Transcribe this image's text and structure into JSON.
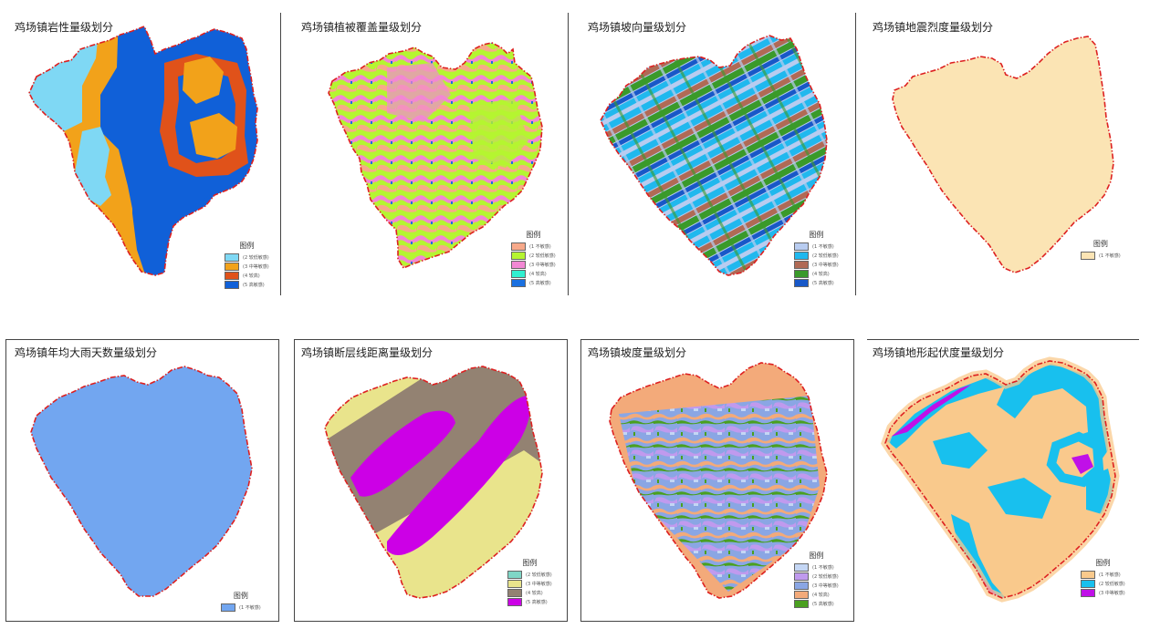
{
  "panels": [
    {
      "title": "鸡场镇岩性量级划分",
      "legend_title": "图例",
      "classes": [
        {
          "label": "(2 较低敏感)",
          "color": "#7fd8f4"
        },
        {
          "label": "(3 中等敏感)",
          "color": "#f2a21a"
        },
        {
          "label": "(4 较高)",
          "color": "#e0521a"
        },
        {
          "label": "(5 高敏感)",
          "color": "#1060d8"
        }
      ]
    },
    {
      "title": "鸡场镇植被覆盖量级划分",
      "legend_title": "图例",
      "classes": [
        {
          "label": "(1 不敏感)",
          "color": "#f7a98a"
        },
        {
          "label": "(2 较低敏感)",
          "color": "#b5f531"
        },
        {
          "label": "(3 中等敏感)",
          "color": "#f287d4"
        },
        {
          "label": "(4 较高)",
          "color": "#30f0d0"
        },
        {
          "label": "(5 高敏感)",
          "color": "#1a70e0"
        }
      ]
    },
    {
      "title": "鸡场镇坡向量级划分",
      "legend_title": "图例",
      "classes": [
        {
          "label": "(1 不敏感)",
          "color": "#b8ccf0"
        },
        {
          "label": "(2 较低敏感)",
          "color": "#20b8ee"
        },
        {
          "label": "(3 中等敏感)",
          "color": "#b06a55"
        },
        {
          "label": "(4 较高)",
          "color": "#3a9a2a"
        },
        {
          "label": "(5 高敏感)",
          "color": "#1858c8"
        }
      ]
    },
    {
      "title": "鸡场镇地震烈度量级划分",
      "legend_title": "图例",
      "classes": [
        {
          "label": "(1 不敏感)",
          "color": "#fbe4b4"
        }
      ]
    },
    {
      "title": "鸡场镇年均大雨天数量级划分",
      "legend_title": "图例",
      "classes": [
        {
          "label": "(1 不敏感)",
          "color": "#72a6f0"
        }
      ]
    },
    {
      "title": "鸡场镇断层线距离量级划分",
      "legend_title": "图例",
      "classes": [
        {
          "label": "(2 较低敏感)",
          "color": "#7fd6c6"
        },
        {
          "label": "(3 中等敏感)",
          "color": "#e9e48c"
        },
        {
          "label": "(4 较高)",
          "color": "#938272"
        },
        {
          "label": "(5 高敏感)",
          "color": "#cc00e6"
        }
      ]
    },
    {
      "title": "鸡场镇坡度量级划分",
      "legend_title": "图例",
      "classes": [
        {
          "label": "(1 不敏感)",
          "color": "#c4d6f4"
        },
        {
          "label": "(2 较低敏感)",
          "color": "#c09aee"
        },
        {
          "label": "(3 中等敏感)",
          "color": "#8aa6e4"
        },
        {
          "label": "(4 较高)",
          "color": "#f3aa7a"
        },
        {
          "label": "(5 高敏感)",
          "color": "#4aa020"
        }
      ]
    },
    {
      "title": "鸡场镇地形起伏度量级划分",
      "legend_title": "图例",
      "classes": [
        {
          "label": "(1 不敏感)",
          "color": "#f9c98c"
        },
        {
          "label": "(2 较低敏感)",
          "color": "#18c0ee"
        },
        {
          "label": "(3 中等敏感)",
          "color": "#c010e8"
        }
      ]
    }
  ],
  "boundary_color": "#dd2020"
}
